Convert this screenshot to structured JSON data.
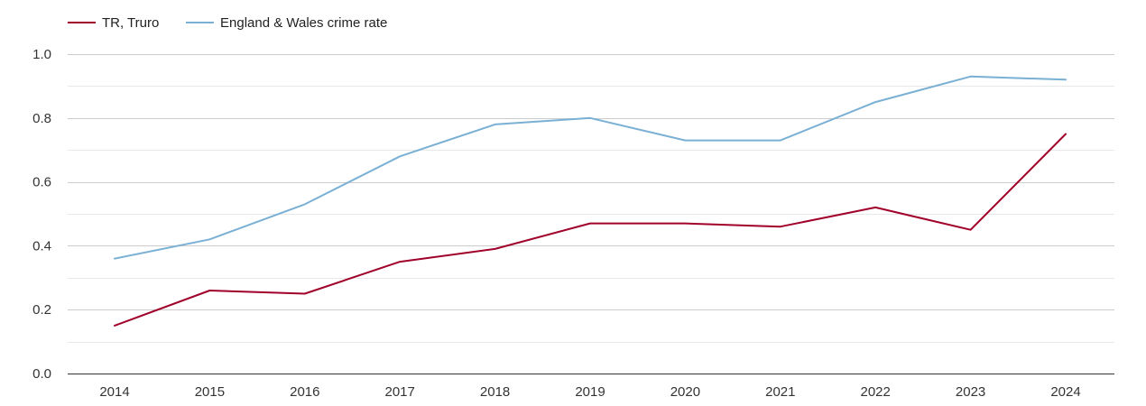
{
  "chart_data": {
    "type": "line",
    "title": "",
    "xlabel": "",
    "ylabel": "",
    "categories": [
      "2014",
      "2015",
      "2016",
      "2017",
      "2018",
      "2019",
      "2020",
      "2021",
      "2022",
      "2023",
      "2024"
    ],
    "ylim": [
      0,
      1.0
    ],
    "yticks": [
      0.0,
      0.2,
      0.4,
      0.6,
      0.8,
      1.0
    ],
    "ytick_labels": [
      "0.0",
      "0.2",
      "0.4",
      "0.6",
      "0.8",
      "1.0"
    ],
    "grid": true,
    "legend_position": "top-left",
    "series": [
      {
        "name": "TR, Truro",
        "color": "#a0002a",
        "values": [
          0.15,
          0.26,
          0.25,
          0.35,
          0.39,
          0.47,
          0.47,
          0.46,
          0.52,
          0.45,
          0.75
        ]
      },
      {
        "name": "England & Wales crime rate",
        "color": "#7ab0d4",
        "values": [
          0.36,
          0.42,
          0.53,
          0.68,
          0.78,
          0.8,
          0.73,
          0.73,
          0.85,
          0.93,
          0.92
        ]
      }
    ]
  }
}
